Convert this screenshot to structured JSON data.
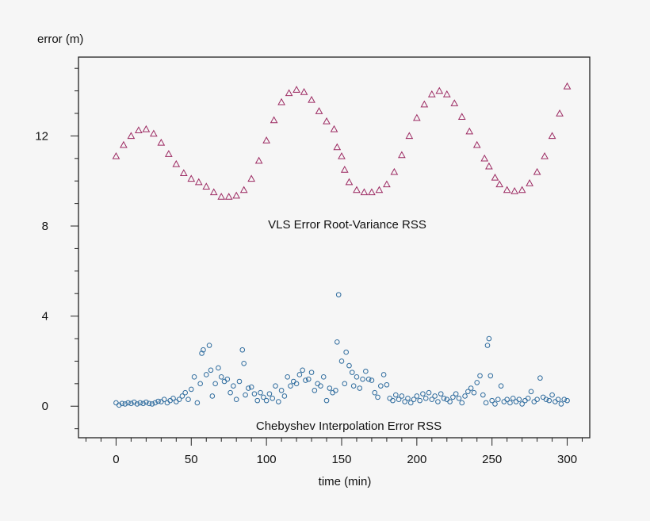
{
  "chart_data": {
    "type": "scatter",
    "title": "",
    "xlabel": "time (min)",
    "ylabel": "error (m)",
    "xlim": [
      -25,
      315
    ],
    "ylim": [
      -1.4,
      15.5
    ],
    "xticks": [
      0,
      50,
      100,
      150,
      200,
      250,
      300
    ],
    "yticks": [
      0,
      4,
      8,
      12
    ],
    "x_minor_step": 10,
    "y_minor_step": 1,
    "grid": false,
    "legend": "none",
    "annotations": [
      {
        "text": "VLS Error Root-Variance RSS",
        "x": 152,
        "y": 8.2
      },
      {
        "text": "Chebyshev Interpolation Error RSS",
        "x": 152,
        "y": -0.85
      }
    ],
    "series": [
      {
        "marker": "triangle",
        "color": "#9c2a62",
        "points": [
          [
            0,
            11.1
          ],
          [
            5,
            11.6
          ],
          [
            10,
            12.0
          ],
          [
            15,
            12.25
          ],
          [
            20,
            12.3
          ],
          [
            25,
            12.1
          ],
          [
            30,
            11.7
          ],
          [
            35,
            11.2
          ],
          [
            40,
            10.75
          ],
          [
            45,
            10.35
          ],
          [
            50,
            10.1
          ],
          [
            55,
            9.95
          ],
          [
            60,
            9.75
          ],
          [
            65,
            9.5
          ],
          [
            70,
            9.3
          ],
          [
            75,
            9.3
          ],
          [
            80,
            9.35
          ],
          [
            85,
            9.6
          ],
          [
            90,
            10.1
          ],
          [
            95,
            10.9
          ],
          [
            100,
            11.8
          ],
          [
            105,
            12.7
          ],
          [
            110,
            13.5
          ],
          [
            115,
            13.9
          ],
          [
            120,
            14.05
          ],
          [
            125,
            13.95
          ],
          [
            130,
            13.6
          ],
          [
            135,
            13.1
          ],
          [
            140,
            12.65
          ],
          [
            145,
            12.3
          ],
          [
            147,
            11.5
          ],
          [
            150,
            11.1
          ],
          [
            152,
            10.5
          ],
          [
            155,
            9.95
          ],
          [
            160,
            9.6
          ],
          [
            165,
            9.5
          ],
          [
            170,
            9.5
          ],
          [
            175,
            9.6
          ],
          [
            180,
            9.85
          ],
          [
            185,
            10.4
          ],
          [
            190,
            11.15
          ],
          [
            195,
            12.0
          ],
          [
            200,
            12.8
          ],
          [
            205,
            13.4
          ],
          [
            210,
            13.85
          ],
          [
            215,
            14.0
          ],
          [
            220,
            13.85
          ],
          [
            225,
            13.45
          ],
          [
            230,
            12.85
          ],
          [
            235,
            12.2
          ],
          [
            240,
            11.6
          ],
          [
            245,
            11.0
          ],
          [
            248,
            10.65
          ],
          [
            252,
            10.15
          ],
          [
            255,
            9.85
          ],
          [
            260,
            9.6
          ],
          [
            265,
            9.55
          ],
          [
            270,
            9.6
          ],
          [
            275,
            9.9
          ],
          [
            280,
            10.4
          ],
          [
            285,
            11.1
          ],
          [
            290,
            12.0
          ],
          [
            295,
            13.0
          ],
          [
            300,
            14.2
          ]
        ]
      },
      {
        "marker": "circle",
        "color": "#2f6c9e",
        "points": [
          [
            0,
            0.15
          ],
          [
            2,
            0.05
          ],
          [
            4,
            0.12
          ],
          [
            6,
            0.1
          ],
          [
            8,
            0.15
          ],
          [
            10,
            0.12
          ],
          [
            12,
            0.18
          ],
          [
            14,
            0.1
          ],
          [
            16,
            0.15
          ],
          [
            18,
            0.12
          ],
          [
            20,
            0.18
          ],
          [
            22,
            0.12
          ],
          [
            24,
            0.1
          ],
          [
            26,
            0.15
          ],
          [
            28,
            0.22
          ],
          [
            30,
            0.2
          ],
          [
            32,
            0.3
          ],
          [
            34,
            0.15
          ],
          [
            36,
            0.25
          ],
          [
            38,
            0.35
          ],
          [
            40,
            0.2
          ],
          [
            42,
            0.3
          ],
          [
            44,
            0.45
          ],
          [
            46,
            0.6
          ],
          [
            48,
            0.3
          ],
          [
            50,
            0.75
          ],
          [
            52,
            1.3
          ],
          [
            54,
            0.15
          ],
          [
            56,
            1.0
          ],
          [
            57,
            2.35
          ],
          [
            58,
            2.5
          ],
          [
            60,
            1.4
          ],
          [
            62,
            2.7
          ],
          [
            63,
            1.6
          ],
          [
            64,
            0.45
          ],
          [
            66,
            1.0
          ],
          [
            68,
            1.7
          ],
          [
            70,
            1.3
          ],
          [
            72,
            1.1
          ],
          [
            74,
            1.2
          ],
          [
            76,
            0.6
          ],
          [
            78,
            0.9
          ],
          [
            80,
            0.3
          ],
          [
            82,
            1.1
          ],
          [
            84,
            2.5
          ],
          [
            85,
            1.9
          ],
          [
            86,
            0.5
          ],
          [
            88,
            0.8
          ],
          [
            90,
            0.85
          ],
          [
            92,
            0.55
          ],
          [
            94,
            0.25
          ],
          [
            96,
            0.6
          ],
          [
            98,
            0.4
          ],
          [
            100,
            0.25
          ],
          [
            102,
            0.55
          ],
          [
            104,
            0.35
          ],
          [
            106,
            0.9
          ],
          [
            108,
            0.2
          ],
          [
            110,
            0.7
          ],
          [
            112,
            0.45
          ],
          [
            114,
            1.3
          ],
          [
            116,
            0.9
          ],
          [
            118,
            1.1
          ],
          [
            120,
            1.0
          ],
          [
            122,
            1.4
          ],
          [
            124,
            1.6
          ],
          [
            126,
            1.15
          ],
          [
            128,
            1.2
          ],
          [
            130,
            1.5
          ],
          [
            132,
            0.7
          ],
          [
            134,
            1.0
          ],
          [
            136,
            0.9
          ],
          [
            138,
            1.3
          ],
          [
            140,
            0.25
          ],
          [
            142,
            0.8
          ],
          [
            144,
            0.6
          ],
          [
            146,
            0.7
          ],
          [
            147,
            2.85
          ],
          [
            148,
            4.95
          ],
          [
            150,
            2.0
          ],
          [
            152,
            1.0
          ],
          [
            153,
            2.4
          ],
          [
            155,
            1.8
          ],
          [
            157,
            1.5
          ],
          [
            158,
            0.9
          ],
          [
            160,
            1.3
          ],
          [
            162,
            0.8
          ],
          [
            164,
            1.2
          ],
          [
            166,
            1.55
          ],
          [
            168,
            1.2
          ],
          [
            170,
            1.15
          ],
          [
            172,
            0.6
          ],
          [
            174,
            0.4
          ],
          [
            176,
            0.9
          ],
          [
            178,
            1.4
          ],
          [
            180,
            0.95
          ],
          [
            182,
            0.35
          ],
          [
            184,
            0.25
          ],
          [
            186,
            0.5
          ],
          [
            188,
            0.3
          ],
          [
            190,
            0.45
          ],
          [
            192,
            0.2
          ],
          [
            194,
            0.35
          ],
          [
            196,
            0.15
          ],
          [
            198,
            0.3
          ],
          [
            200,
            0.45
          ],
          [
            202,
            0.25
          ],
          [
            204,
            0.55
          ],
          [
            206,
            0.35
          ],
          [
            208,
            0.6
          ],
          [
            210,
            0.3
          ],
          [
            212,
            0.45
          ],
          [
            214,
            0.2
          ],
          [
            216,
            0.55
          ],
          [
            218,
            0.35
          ],
          [
            220,
            0.3
          ],
          [
            222,
            0.2
          ],
          [
            224,
            0.4
          ],
          [
            226,
            0.55
          ],
          [
            228,
            0.35
          ],
          [
            230,
            0.15
          ],
          [
            232,
            0.45
          ],
          [
            234,
            0.65
          ],
          [
            236,
            0.8
          ],
          [
            238,
            0.6
          ],
          [
            240,
            1.05
          ],
          [
            242,
            1.35
          ],
          [
            244,
            0.5
          ],
          [
            246,
            0.15
          ],
          [
            247,
            2.7
          ],
          [
            248,
            3.0
          ],
          [
            249,
            1.35
          ],
          [
            250,
            0.25
          ],
          [
            252,
            0.1
          ],
          [
            254,
            0.3
          ],
          [
            256,
            0.9
          ],
          [
            258,
            0.2
          ],
          [
            260,
            0.3
          ],
          [
            262,
            0.15
          ],
          [
            264,
            0.35
          ],
          [
            266,
            0.2
          ],
          [
            268,
            0.3
          ],
          [
            270,
            0.1
          ],
          [
            272,
            0.25
          ],
          [
            274,
            0.35
          ],
          [
            276,
            0.65
          ],
          [
            278,
            0.2
          ],
          [
            280,
            0.3
          ],
          [
            282,
            1.25
          ],
          [
            284,
            0.4
          ],
          [
            286,
            0.3
          ],
          [
            288,
            0.25
          ],
          [
            290,
            0.5
          ],
          [
            292,
            0.2
          ],
          [
            294,
            0.3
          ],
          [
            296,
            0.1
          ],
          [
            298,
            0.3
          ],
          [
            300,
            0.25
          ]
        ]
      }
    ]
  }
}
